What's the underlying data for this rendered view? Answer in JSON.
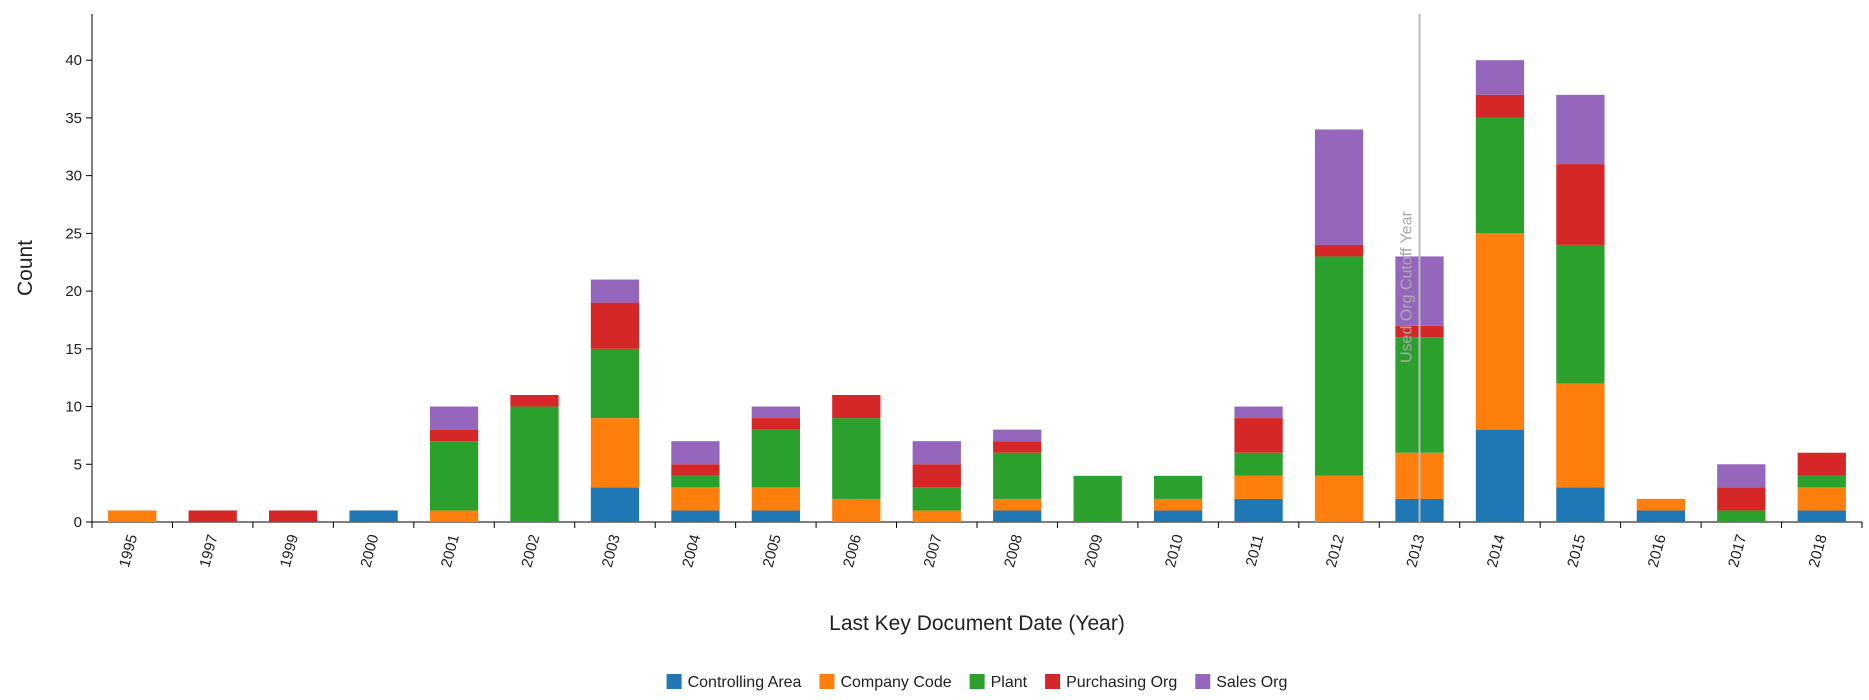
{
  "chart_data": {
    "type": "stacked_bar",
    "x_label": "Last Key Document Date (Year)",
    "y_label": "Count",
    "categories": [
      "1995",
      "1997",
      "1999",
      "2000",
      "2001",
      "2002",
      "2003",
      "2004",
      "2005",
      "2006",
      "2007",
      "2008",
      "2009",
      "2010",
      "2011",
      "2012",
      "2013",
      "2014",
      "2015",
      "2016",
      "2017",
      "2018"
    ],
    "series": [
      {
        "name": "Controlling Area",
        "color": "#1f77b4",
        "values": [
          0,
          0,
          0,
          1,
          0,
          0,
          3,
          1,
          1,
          0,
          0,
          1,
          0,
          1,
          2,
          0,
          2,
          8,
          3,
          1,
          0,
          1
        ]
      },
      {
        "name": "Company Code",
        "color": "#ff7f0e",
        "values": [
          1,
          0,
          0,
          0,
          1,
          0,
          6,
          2,
          2,
          2,
          1,
          1,
          0,
          1,
          2,
          4,
          4,
          17,
          9,
          1,
          0,
          2
        ]
      },
      {
        "name": "Plant",
        "color": "#2ca02c",
        "values": [
          0,
          0,
          0,
          0,
          6,
          10,
          6,
          1,
          5,
          7,
          2,
          4,
          4,
          2,
          2,
          19,
          10,
          10,
          12,
          0,
          1,
          1
        ]
      },
      {
        "name": "Purchasing Org",
        "color": "#d62728",
        "values": [
          0,
          1,
          1,
          0,
          1,
          1,
          4,
          1,
          1,
          2,
          2,
          1,
          0,
          0,
          3,
          1,
          1,
          2,
          7,
          0,
          2,
          2
        ]
      },
      {
        "name": "Sales Org",
        "color": "#9467bd",
        "values": [
          0,
          0,
          0,
          0,
          2,
          0,
          2,
          2,
          1,
          0,
          2,
          1,
          0,
          0,
          1,
          10,
          6,
          3,
          6,
          0,
          2,
          0
        ]
      }
    ],
    "ylim": [
      0,
      44
    ],
    "yticks": [
      0,
      5,
      10,
      15,
      20,
      25,
      30,
      35,
      40
    ],
    "annotations": [
      {
        "text": "Used Org Cutoff Year",
        "x": "2013"
      }
    ],
    "legend": "bottom"
  }
}
